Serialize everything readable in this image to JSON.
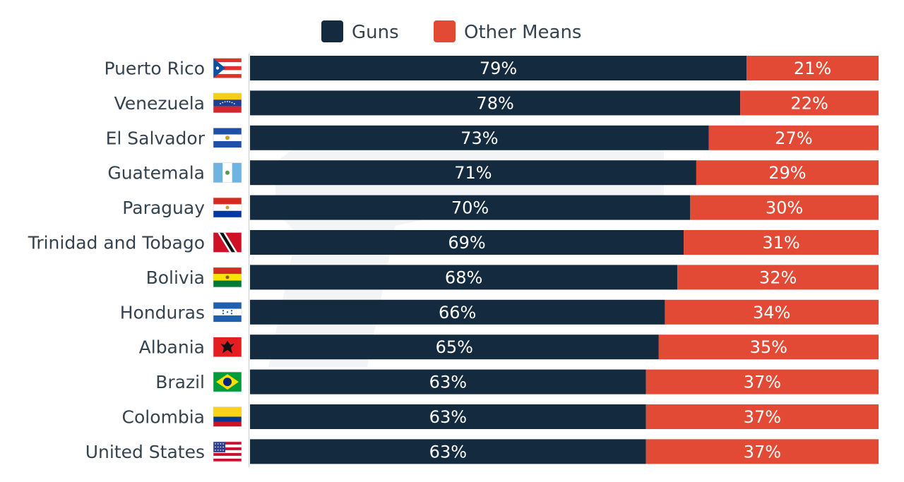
{
  "colors": {
    "guns": "#132a3f",
    "other": "#e24a36",
    "text": "#34434f",
    "axis": "#c9ced3"
  },
  "chart_data": {
    "type": "bar",
    "orientation": "horizontal",
    "stacked": true,
    "legend_position": "top",
    "xlim": [
      0,
      100
    ],
    "categories": [
      "Puerto Rico",
      "Venezuela",
      "El Salvador",
      "Guatemala",
      "Paraguay",
      "Trinidad and Tobago",
      "Bolivia",
      "Honduras",
      "Albania",
      "Brazil",
      "Colombia",
      "United States"
    ],
    "flags": [
      "flag-puerto-rico",
      "flag-venezuela",
      "flag-el-salvador",
      "flag-guatemala",
      "flag-paraguay",
      "flag-trinidad-and-tobago",
      "flag-bolivia",
      "flag-honduras",
      "flag-albania",
      "flag-brazil",
      "flag-colombia",
      "flag-united-states"
    ],
    "series": [
      {
        "name": "Guns",
        "values": [
          79,
          78,
          73,
          71,
          70,
          69,
          68,
          66,
          65,
          63,
          63,
          63
        ],
        "labels": [
          "79%",
          "78%",
          "73%",
          "71%",
          "70%",
          "69%",
          "68%",
          "66%",
          "65%",
          "63%",
          "63%",
          "63%"
        ]
      },
      {
        "name": "Other Means",
        "values": [
          21,
          22,
          27,
          29,
          30,
          31,
          32,
          34,
          35,
          37,
          37,
          37
        ],
        "labels": [
          "21%",
          "22%",
          "27%",
          "29%",
          "30%",
          "31%",
          "32%",
          "34%",
          "35%",
          "37%",
          "37%",
          "37%"
        ]
      }
    ]
  }
}
